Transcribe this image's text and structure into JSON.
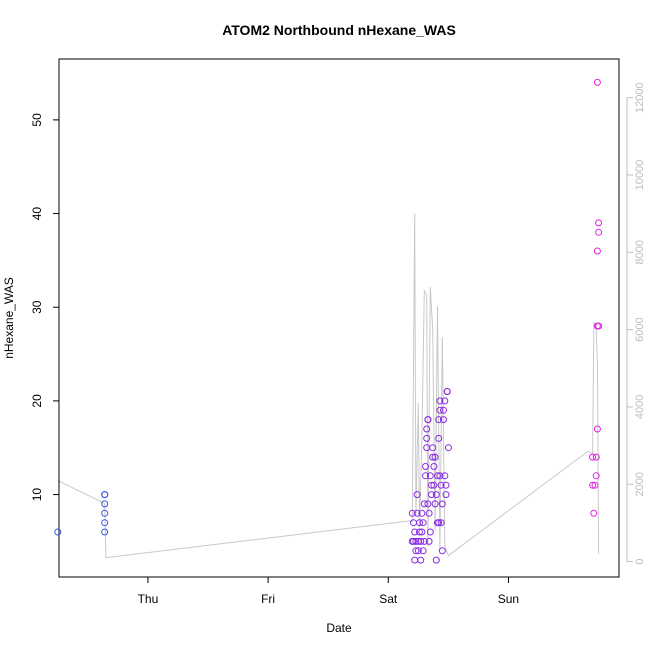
{
  "chart_data": {
    "type": "scatter",
    "title": "ATOM2 Northbound nHexane_WAS",
    "xlabel": "Date",
    "ylabel": "nHexane_WAS",
    "x_ticks": [
      {
        "label": "Thu",
        "x": 1.0
      },
      {
        "label": "Fri",
        "x": 2.0
      },
      {
        "label": "Sat",
        "x": 3.0
      },
      {
        "label": "Sun",
        "x": 4.0
      }
    ],
    "x_unit_note": "x values are in days relative to Thursday 00:00",
    "xlim": [
      0.26,
      4.92
    ],
    "ylim": [
      1.2,
      56.5
    ],
    "y_ticks": [
      10,
      20,
      30,
      40,
      50
    ],
    "y2lim": [
      -400,
      13000
    ],
    "y2_ticks": [
      0,
      2000,
      4000,
      6000,
      8000,
      10000,
      12000
    ],
    "colors": {
      "early": "#3a57e0",
      "mid": "#8a2be2",
      "late": "#e020e0",
      "line": "#c8c8c8"
    },
    "points": [
      [
        0.25,
        6
      ],
      [
        0.64,
        10
      ],
      [
        0.64,
        10
      ],
      [
        0.64,
        9
      ],
      [
        0.64,
        8
      ],
      [
        0.64,
        7
      ],
      [
        0.64,
        6
      ],
      [
        3.2,
        8
      ],
      [
        3.2,
        5
      ],
      [
        3.21,
        7
      ],
      [
        3.21,
        5
      ],
      [
        3.22,
        3
      ],
      [
        3.22,
        6
      ],
      [
        3.23,
        4
      ],
      [
        3.23,
        5
      ],
      [
        3.24,
        10
      ],
      [
        3.24,
        8
      ],
      [
        3.25,
        5
      ],
      [
        3.25,
        4
      ],
      [
        3.26,
        6
      ],
      [
        3.26,
        7
      ],
      [
        3.27,
        3
      ],
      [
        3.27,
        5
      ],
      [
        3.28,
        8
      ],
      [
        3.28,
        6
      ],
      [
        3.29,
        4
      ],
      [
        3.29,
        7
      ],
      [
        3.3,
        5
      ],
      [
        3.3,
        9
      ],
      [
        3.31,
        12
      ],
      [
        3.31,
        13
      ],
      [
        3.32,
        15
      ],
      [
        3.32,
        16
      ],
      [
        3.32,
        17
      ],
      [
        3.33,
        18
      ],
      [
        3.33,
        18
      ],
      [
        3.33,
        9
      ],
      [
        3.34,
        8
      ],
      [
        3.34,
        5
      ],
      [
        3.35,
        6
      ],
      [
        3.35,
        12
      ],
      [
        3.36,
        10
      ],
      [
        3.36,
        11
      ],
      [
        3.37,
        14
      ],
      [
        3.37,
        15
      ],
      [
        3.38,
        13
      ],
      [
        3.38,
        11
      ],
      [
        3.39,
        14
      ],
      [
        3.39,
        9
      ],
      [
        3.4,
        3
      ],
      [
        3.4,
        10
      ],
      [
        3.41,
        12
      ],
      [
        3.41,
        7
      ],
      [
        3.42,
        7
      ],
      [
        3.42,
        16
      ],
      [
        3.42,
        18
      ],
      [
        3.43,
        19
      ],
      [
        3.43,
        20
      ],
      [
        3.43,
        12
      ],
      [
        3.44,
        11
      ],
      [
        3.44,
        7
      ],
      [
        3.45,
        4
      ],
      [
        3.45,
        9
      ],
      [
        3.46,
        18
      ],
      [
        3.46,
        19
      ],
      [
        3.47,
        20
      ],
      [
        3.47,
        12
      ],
      [
        3.48,
        10
      ],
      [
        3.48,
        11
      ],
      [
        3.49,
        21
      ],
      [
        3.49,
        21
      ],
      [
        3.5,
        15
      ],
      [
        4.7,
        14
      ],
      [
        4.7,
        11
      ],
      [
        4.71,
        8
      ],
      [
        4.72,
        11
      ],
      [
        4.73,
        14
      ],
      [
        4.73,
        12
      ],
      [
        4.74,
        17
      ],
      [
        4.74,
        28
      ],
      [
        4.75,
        28
      ],
      [
        4.74,
        36
      ],
      [
        4.75,
        38
      ],
      [
        4.75,
        39
      ],
      [
        4.74,
        54
      ]
    ],
    "line_series": [
      [
        0.25,
        2100
      ],
      [
        0.64,
        1500
      ],
      [
        0.65,
        100
      ],
      [
        3.18,
        1050
      ],
      [
        3.2,
        1020
      ],
      [
        3.22,
        9000
      ],
      [
        3.23,
        1200
      ],
      [
        3.25,
        4100
      ],
      [
        3.26,
        900
      ],
      [
        3.28,
        3200
      ],
      [
        3.3,
        7000
      ],
      [
        3.32,
        6900
      ],
      [
        3.33,
        400
      ],
      [
        3.35,
        7100
      ],
      [
        3.37,
        6000
      ],
      [
        3.39,
        800
      ],
      [
        3.41,
        6600
      ],
      [
        3.43,
        300
      ],
      [
        3.45,
        5800
      ],
      [
        3.47,
        400
      ],
      [
        3.5,
        150
      ],
      [
        3.52,
        200
      ],
      [
        4.66,
        2850
      ],
      [
        4.7,
        2800
      ],
      [
        4.71,
        6200
      ],
      [
        4.73,
        6000
      ],
      [
        4.74,
        5200
      ],
      [
        4.75,
        200
      ]
    ]
  }
}
